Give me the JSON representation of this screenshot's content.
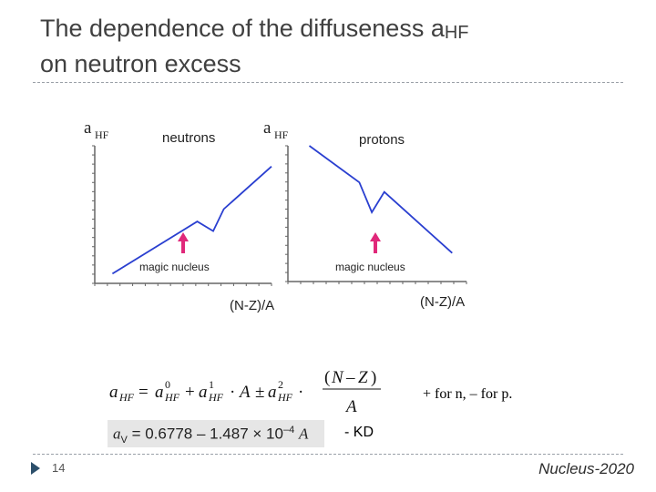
{
  "slide": {
    "title_line1": "The dependence of the diffuseness a",
    "title_sub": "HF",
    "title_line2": "on neutron excess",
    "page_number": "14",
    "footer_brand": "Nucleus-2020"
  },
  "chart_data": [
    {
      "type": "line",
      "title": "neutrons",
      "ylabel": "a",
      "ylabel_sub": "HF",
      "xlabel": "(N-Z)/A",
      "annotation": "magic nucleus",
      "series": [
        {
          "points": [
            [
              0.1,
              0.07
            ],
            [
              0.58,
              0.45
            ],
            [
              0.67,
              0.38
            ],
            [
              0.73,
              0.54
            ],
            [
              1.0,
              0.85
            ]
          ]
        }
      ],
      "grid": false,
      "colors": {
        "line": "#2a3fd0",
        "arrow": "#e0287a",
        "axis": "#666666"
      }
    },
    {
      "type": "line",
      "title": "protons",
      "ylabel": "a",
      "ylabel_sub": "HF",
      "xlabel": "(N-Z)/A",
      "annotation": "magic nucleus",
      "series": [
        {
          "points": [
            [
              0.12,
              1.0
            ],
            [
              0.4,
              0.73
            ],
            [
              0.47,
              0.51
            ],
            [
              0.54,
              0.66
            ],
            [
              0.92,
              0.21
            ]
          ]
        }
      ],
      "grid": false,
      "colors": {
        "line": "#2a3fd0",
        "arrow": "#e0287a",
        "axis": "#666666"
      }
    }
  ],
  "formula": {
    "note": "+ for n, – for p.",
    "kd_label": "- KD",
    "av_lhs": "a",
    "av_sub": "V",
    "av_rhs": "= 0.6778 – 1.487 × 10",
    "av_exp": "–4",
    "av_var": "A"
  }
}
